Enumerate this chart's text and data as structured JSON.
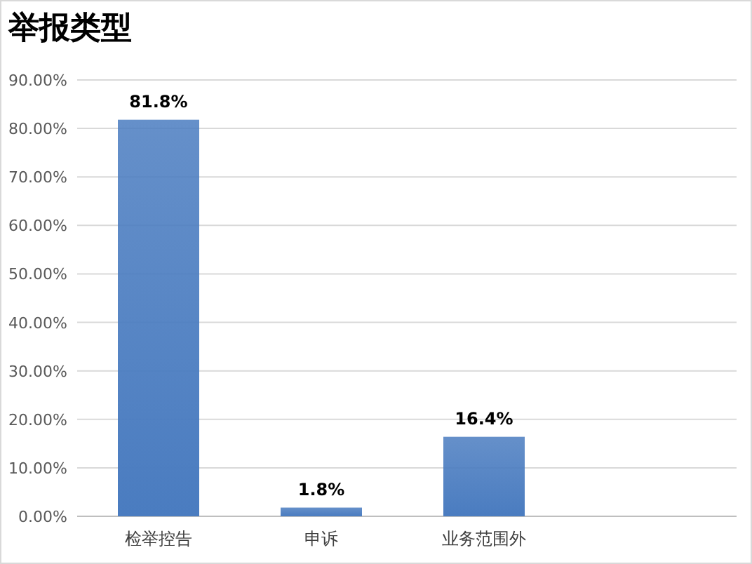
{
  "chart_data": {
    "type": "bar",
    "title": "举报类型",
    "categories": [
      "检举控告",
      "申诉",
      "业务范围外"
    ],
    "values": [
      81.8,
      1.8,
      16.4
    ],
    "value_labels": [
      "81.8%",
      "1.8%",
      "16.4%"
    ],
    "color": "#4a7cc0",
    "ylim": [
      0,
      90
    ],
    "yticks": [
      {
        "value": 0,
        "label": "0.00%"
      },
      {
        "value": 10,
        "label": "10.00%"
      },
      {
        "value": 20,
        "label": "20.00%"
      },
      {
        "value": 30,
        "label": "30.00%"
      },
      {
        "value": 40,
        "label": "40.00%"
      },
      {
        "value": 50,
        "label": "50.00%"
      },
      {
        "value": 60,
        "label": "60.00%"
      },
      {
        "value": 70,
        "label": "70.00%"
      },
      {
        "value": 80,
        "label": "80.00%"
      },
      {
        "value": 90,
        "label": "90.00%"
      }
    ],
    "grid": "y"
  }
}
